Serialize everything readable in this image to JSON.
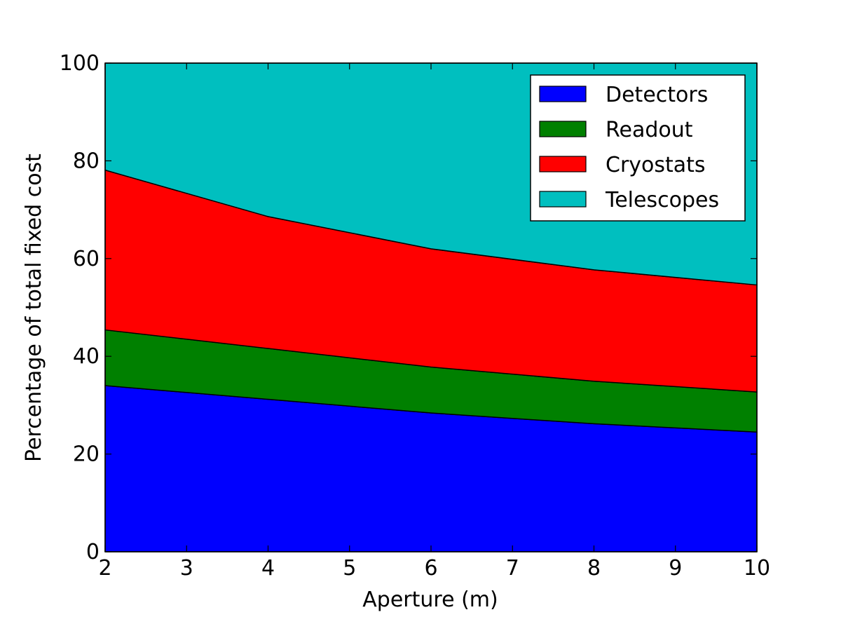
{
  "chart_data": {
    "type": "area",
    "stacked": true,
    "x": [
      2,
      4,
      6,
      8,
      10
    ],
    "xlabel": "Aperture (m)",
    "ylabel": "Percentage of total fixed cost",
    "xlim": [
      2,
      10
    ],
    "ylim": [
      0,
      100
    ],
    "xticks": [
      "2",
      "3",
      "4",
      "5",
      "6",
      "7",
      "8",
      "9",
      "10"
    ],
    "yticks": [
      "0",
      "20",
      "40",
      "60",
      "80",
      "100"
    ],
    "grid": false,
    "legend_position": "top-right",
    "series": [
      {
        "name": "Detectors",
        "color": "#0000ff",
        "values": [
          34.0,
          31.2,
          28.4,
          26.2,
          24.5
        ]
      },
      {
        "name": "Readout",
        "color": "#008000",
        "values": [
          11.4,
          10.4,
          9.4,
          8.7,
          8.2
        ]
      },
      {
        "name": "Cryostats",
        "color": "#ff0000",
        "values": [
          32.7,
          27.0,
          24.2,
          22.8,
          21.9
        ]
      },
      {
        "name": "Telescopes",
        "color": "#00bfbf",
        "values": [
          21.9,
          31.4,
          38.0,
          42.3,
          45.4
        ]
      }
    ]
  }
}
